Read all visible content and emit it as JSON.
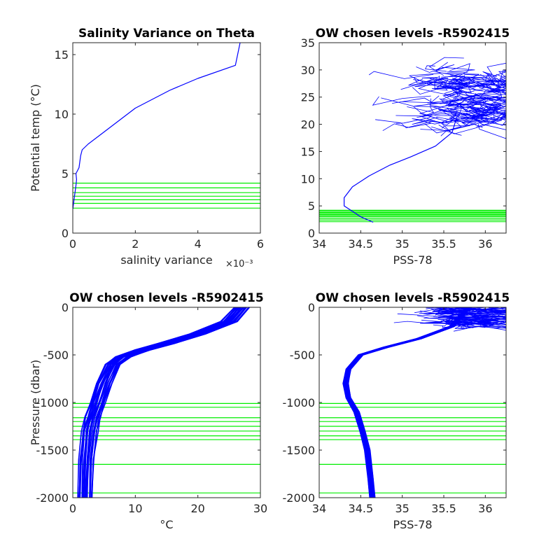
{
  "chart_data": [
    {
      "type": "line",
      "title": "Salinity Variance on Theta",
      "xlabel": "salinity variance",
      "x_exponent": "×10⁻³",
      "ylabel": "Potential temp (°C)",
      "xlim": [
        0,
        6
      ],
      "ylim": [
        0,
        16
      ],
      "xticks": [
        0,
        2,
        4,
        6
      ],
      "yticks": [
        0,
        5,
        10,
        15
      ],
      "series": [
        {
          "color": "#0000ff",
          "x": [
            0.0,
            0.05,
            0.1,
            0.12,
            0.1,
            0.2,
            0.25,
            0.3,
            0.5,
            1.0,
            1.5,
            2.0,
            3.1,
            4.0,
            5.2,
            5.35
          ],
          "y": [
            2.0,
            3.0,
            4.0,
            4.5,
            5.0,
            5.5,
            6.5,
            7.0,
            7.5,
            8.5,
            9.5,
            10.5,
            12.0,
            13.0,
            14.1,
            16.0
          ]
        }
      ],
      "hlines": {
        "color": "#00ee00",
        "y": [
          2.1,
          2.5,
          2.8,
          3.1,
          3.4,
          3.8,
          4.2
        ]
      }
    },
    {
      "type": "line",
      "title": "OW chosen levels -R5902415",
      "xlabel": "PSS-78",
      "ylabel": "",
      "xlim": [
        34,
        36.25
      ],
      "ylim": [
        0,
        35
      ],
      "xticks": [
        34,
        34.5,
        35,
        35.5,
        36
      ],
      "yticks": [
        0,
        5,
        10,
        15,
        20,
        25,
        30,
        35
      ],
      "profile": {
        "color": "#0000ff",
        "x": [
          34.65,
          34.5,
          34.4,
          34.3,
          34.3,
          34.4,
          34.6,
          34.85,
          35.1,
          35.4,
          35.6,
          35.65
        ],
        "y": [
          2.0,
          3.0,
          4.0,
          5.0,
          6.5,
          8.5,
          10.5,
          12.5,
          14.0,
          16.0,
          18.5,
          21.0
        ]
      },
      "scatter_region": {
        "x_range": [
          34.6,
          36.25
        ],
        "y_range": [
          20,
          30
        ]
      },
      "hlines": {
        "color": "#00ee00",
        "y": [
          2.1,
          2.4,
          2.7,
          3.0,
          3.2,
          3.4,
          3.6,
          3.8,
          4.0,
          4.2
        ]
      }
    },
    {
      "type": "line",
      "title": "OW chosen levels -R5902415",
      "xlabel": "°C",
      "ylabel": "Pressure (dbar)",
      "xlim": [
        0,
        30
      ],
      "ylim": [
        -2000,
        0
      ],
      "xticks": [
        0,
        10,
        20,
        30
      ],
      "yticks": [
        -2000,
        -1500,
        -1000,
        -500,
        0
      ],
      "profile": {
        "color": "#0000ff",
        "x": [
          2.0,
          2.2,
          2.7,
          3.2,
          4.0,
          5.0,
          6.5,
          8.0,
          11.0,
          15.0,
          20.0,
          25.0,
          27.0
        ],
        "y": [
          -2000,
          -1600,
          -1300,
          -1150,
          -1000,
          -800,
          -600,
          -520,
          -450,
          -380,
          -280,
          -150,
          0
        ]
      },
      "band_width": 2.5,
      "hlines": {
        "color": "#00ee00",
        "y": [
          -1010,
          -1050,
          -1160,
          -1200,
          -1250,
          -1300,
          -1350,
          -1390,
          -1650,
          -1950
        ]
      }
    },
    {
      "type": "line",
      "title": "OW chosen levels -R5902415",
      "xlabel": "PSS-78",
      "ylabel": "",
      "xlim": [
        34,
        36.25
      ],
      "ylim": [
        -2000,
        0
      ],
      "xticks": [
        34,
        34.5,
        35,
        35.5,
        36
      ],
      "yticks": [
        -2000,
        -1500,
        -1000,
        -500,
        0
      ],
      "profile": {
        "color": "#0000ff",
        "x": [
          34.64,
          34.62,
          34.58,
          34.52,
          34.45,
          34.35,
          34.32,
          34.35,
          34.5,
          34.8,
          35.2,
          35.6,
          35.8
        ],
        "y": [
          -2000,
          -1800,
          -1500,
          -1300,
          -1100,
          -950,
          -800,
          -650,
          -500,
          -420,
          -330,
          -200,
          0
        ]
      },
      "band_width": 0.06,
      "scatter_region": {
        "x_range": [
          34.9,
          36.25
        ],
        "y_range": [
          -200,
          0
        ]
      },
      "hlines": {
        "color": "#00ee00",
        "y": [
          -1010,
          -1050,
          -1160,
          -1200,
          -1250,
          -1300,
          -1350,
          -1390,
          -1650,
          -1950
        ]
      }
    }
  ]
}
